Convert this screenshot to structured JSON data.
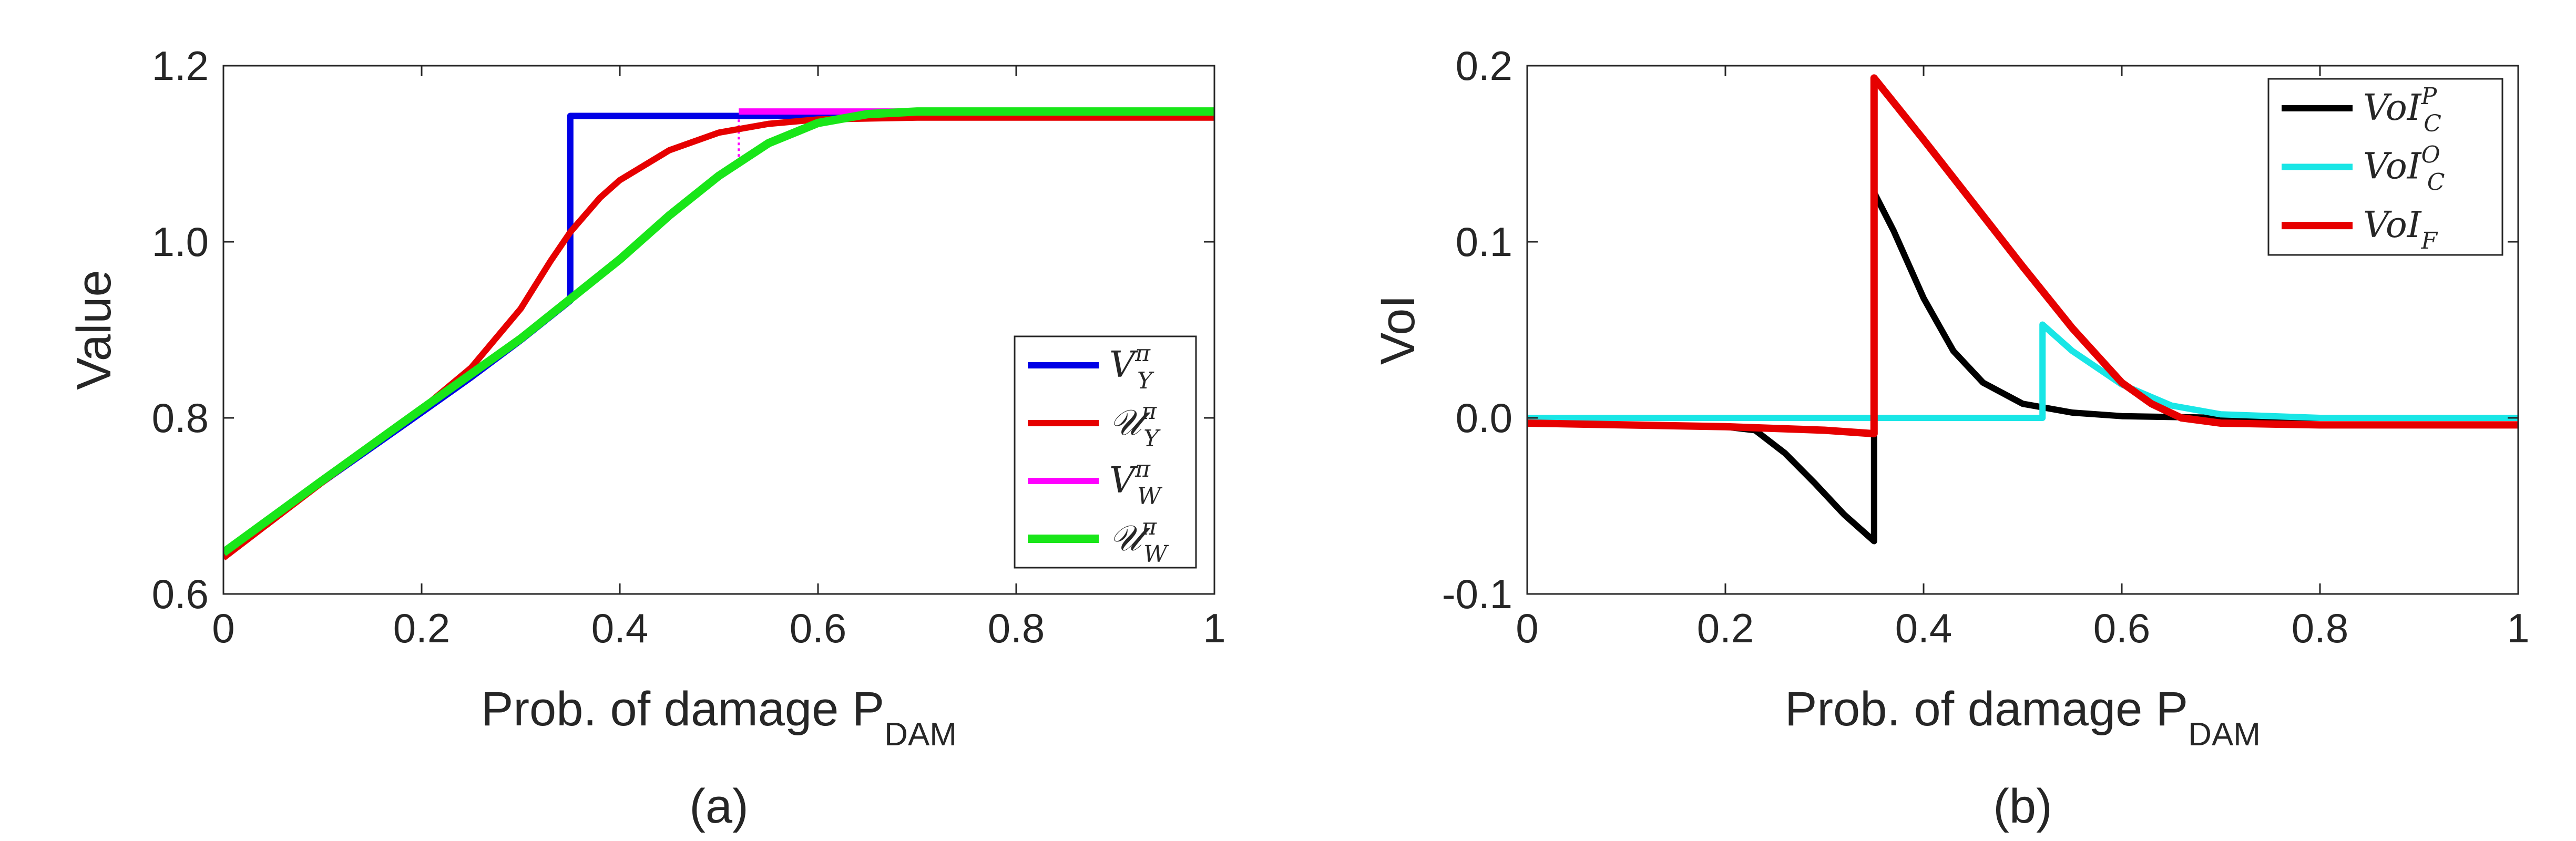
{
  "chart_data": [
    {
      "type": "line",
      "caption": "(a)",
      "ylabel": "Value",
      "xlabel": {
        "main": "Prob. of damage P",
        "sub": "DAM"
      },
      "xlim": [
        0,
        1
      ],
      "ylim": [
        0.6,
        1.2
      ],
      "xticks": [
        0,
        0.2,
        0.4,
        0.6,
        0.8,
        1
      ],
      "xtick_labels": [
        "0",
        "0.2",
        "0.4",
        "0.6",
        "0.8",
        "1"
      ],
      "yticks": [
        0.6,
        0.8,
        1.0,
        1.2
      ],
      "ytick_labels": [
        "0.6",
        "0.8",
        "1.0",
        "1.2"
      ],
      "grid": false,
      "legend_position": "bottom-right",
      "series": [
        {
          "name": "V_Y^π",
          "legend": {
            "base": "V",
            "sub": "Y",
            "sup": "π"
          },
          "color": "#0000e6",
          "width": 12,
          "x": [
            0,
            0.1,
            0.2,
            0.25,
            0.3,
            0.35,
            0.35,
            0.4,
            0.5,
            0.6,
            0.7,
            0.8,
            0.9,
            1.0
          ],
          "y": [
            0.647,
            0.727,
            0.806,
            0.846,
            0.888,
            0.933,
            1.143,
            1.143,
            1.143,
            1.143,
            1.143,
            1.143,
            1.143,
            1.143
          ]
        },
        {
          "name": "U_Y^π",
          "legend": {
            "base": "𝒰",
            "sub": "Y",
            "sup": "π"
          },
          "color": "#e60000",
          "width": 12,
          "x": [
            0,
            0.1,
            0.2,
            0.25,
            0.3,
            0.33,
            0.35,
            0.38,
            0.4,
            0.45,
            0.5,
            0.55,
            0.6,
            0.7,
            0.8,
            0.9,
            1.0
          ],
          "y": [
            0.641,
            0.727,
            0.81,
            0.857,
            0.924,
            0.978,
            1.011,
            1.05,
            1.07,
            1.104,
            1.124,
            1.134,
            1.139,
            1.141,
            1.141,
            1.141,
            1.141
          ]
        },
        {
          "name": "V_W^π",
          "legend": {
            "base": "V",
            "sub": "W",
            "sup": "π"
          },
          "color": "#ff00ff",
          "width": 12,
          "x": [
            0.52,
            0.6,
            0.7,
            0.8,
            0.9,
            1.0
          ],
          "y": [
            1.148,
            1.148,
            1.148,
            1.148,
            1.148,
            1.148
          ]
        },
        {
          "name": "U_W^π",
          "legend": {
            "base": "𝒰",
            "sub": "W",
            "sup": "π"
          },
          "color": "#19e619",
          "width": 16,
          "x": [
            0,
            0.1,
            0.2,
            0.25,
            0.3,
            0.35,
            0.4,
            0.45,
            0.5,
            0.55,
            0.6,
            0.65,
            0.7,
            0.8,
            0.9,
            1.0
          ],
          "y": [
            0.647,
            0.729,
            0.81,
            0.85,
            0.89,
            0.935,
            0.98,
            1.03,
            1.075,
            1.112,
            1.135,
            1.145,
            1.148,
            1.148,
            1.148,
            1.148
          ]
        }
      ],
      "dotted_lines": [
        {
          "x": 0.35,
          "y": [
            0.933,
            1.143
          ],
          "color": "#0000e6"
        },
        {
          "x": 0.52,
          "y": [
            1.09,
            1.148
          ],
          "color": "#ff00ff"
        }
      ]
    },
    {
      "type": "line",
      "caption": "(b)",
      "ylabel": "VoI",
      "xlabel": {
        "main": "Prob. of damage P",
        "sub": "DAM"
      },
      "xlim": [
        0,
        1
      ],
      "ylim": [
        -0.1,
        0.2
      ],
      "xticks": [
        0,
        0.2,
        0.4,
        0.6,
        0.8,
        1
      ],
      "xtick_labels": [
        "0",
        "0.2",
        "0.4",
        "0.6",
        "0.8",
        "1"
      ],
      "yticks": [
        -0.1,
        0.0,
        0.1,
        0.2
      ],
      "ytick_labels": [
        "-0.1",
        "0.0",
        "0.1",
        "0.2"
      ],
      "grid": false,
      "legend_position": "top-right",
      "series": [
        {
          "name": "VoI_C^P",
          "legend": {
            "base": "VoI",
            "sub": "C",
            "sup": "P"
          },
          "color": "#000000",
          "width": 12,
          "x": [
            0,
            0.1,
            0.2,
            0.23,
            0.26,
            0.29,
            0.32,
            0.35,
            0.35,
            0.37,
            0.4,
            0.43,
            0.46,
            0.5,
            0.55,
            0.6,
            0.7,
            0.8,
            1.0
          ],
          "y": [
            -0.003,
            -0.004,
            -0.005,
            -0.007,
            -0.02,
            -0.037,
            -0.055,
            -0.07,
            0.128,
            0.106,
            0.068,
            0.038,
            0.02,
            0.008,
            0.003,
            0.001,
            0.0,
            0.0,
            0.0
          ]
        },
        {
          "name": "VoI_C^O",
          "legend": {
            "base": "VoI",
            "sub": "C",
            "sup": "O"
          },
          "color": "#19e6e6",
          "width": 12,
          "x": [
            0,
            0.2,
            0.4,
            0.52,
            0.52,
            0.55,
            0.6,
            0.65,
            0.7,
            0.8,
            1.0
          ],
          "y": [
            0.0,
            0.0,
            0.0,
            0.0,
            0.053,
            0.038,
            0.019,
            0.007,
            0.002,
            0.0,
            0.0
          ]
        },
        {
          "name": "VoI_F",
          "legend": {
            "base": "VoI",
            "sub": "F",
            "sup": ""
          },
          "color": "#e60000",
          "width": 14,
          "x": [
            0,
            0.1,
            0.2,
            0.25,
            0.3,
            0.35,
            0.35,
            0.4,
            0.45,
            0.5,
            0.55,
            0.6,
            0.63,
            0.66,
            0.7,
            0.8,
            0.9,
            1.0
          ],
          "y": [
            -0.003,
            -0.004,
            -0.005,
            -0.006,
            -0.007,
            -0.009,
            0.193,
            0.158,
            0.122,
            0.086,
            0.051,
            0.02,
            0.008,
            0.0,
            -0.003,
            -0.004,
            -0.004,
            -0.004
          ]
        }
      ],
      "dotted_lines": [
        {
          "x": 0.35,
          "y": [
            -0.009,
            0.193
          ],
          "color": "#e60000"
        },
        {
          "x": 0.35,
          "y": [
            -0.07,
            0.128
          ],
          "color": "#000000"
        },
        {
          "x": 0.52,
          "y": [
            0.0,
            0.053
          ],
          "color": "#19e6e6"
        }
      ]
    }
  ]
}
